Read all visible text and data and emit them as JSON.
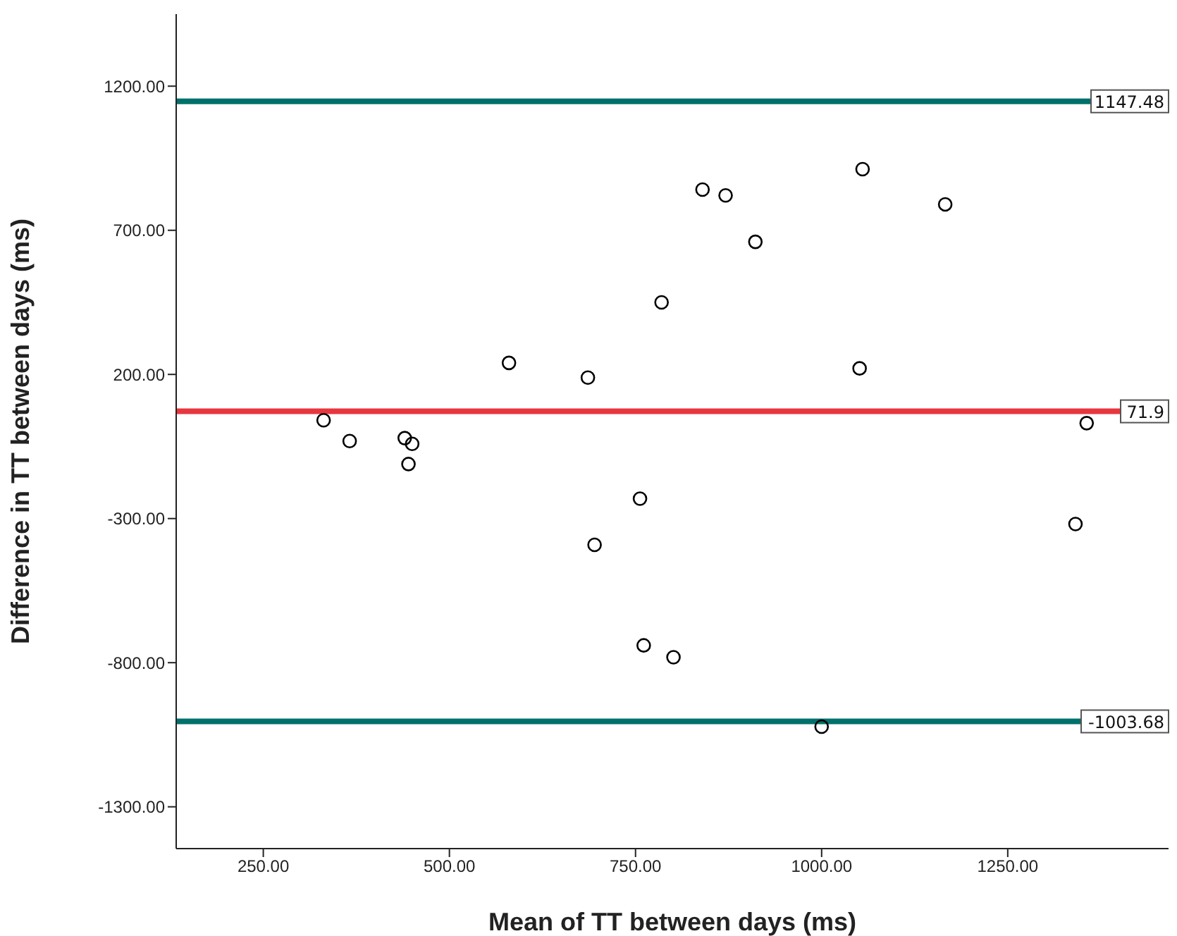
{
  "chart_data": {
    "type": "scatter",
    "xlabel": "Mean of TT between days (ms)",
    "ylabel": "Difference in TT between days (ms)",
    "x": [
      331,
      366,
      440,
      450,
      445,
      580,
      686,
      695,
      756,
      761,
      785,
      801,
      840,
      871,
      911,
      1000,
      1051,
      1055,
      1166,
      1341,
      1356
    ],
    "series": [
      {
        "color": "#000000",
        "values": [
          41,
          -31,
          -21,
          -41,
          -111,
          240,
          189,
          -391,
          -231,
          -740,
          450,
          -781,
          841,
          821,
          660,
          -1022,
          221,
          912,
          790,
          -319,
          31
        ]
      }
    ],
    "marker": "circle",
    "xlim": [
      133,
      1466
    ],
    "xticks": [
      {
        "value": 250,
        "label": "250.00"
      },
      {
        "value": 500,
        "label": "500.00"
      },
      {
        "value": 750,
        "label": "750.00"
      },
      {
        "value": 1000,
        "label": "1000.00"
      },
      {
        "value": 1250,
        "label": "1250.00"
      }
    ],
    "ylim": [
      -1445,
      1450
    ],
    "yticks": [
      {
        "value": -1300,
        "label": "-1300.00"
      },
      {
        "value": -800,
        "label": "-800.00"
      },
      {
        "value": -300,
        "label": "-300.00"
      },
      {
        "value": 200,
        "label": "200.00"
      },
      {
        "value": 700,
        "label": "700.00"
      },
      {
        "value": 1200,
        "label": "1200.00"
      }
    ],
    "ref_lines": [
      {
        "axis": "y",
        "value": 1147.48,
        "label": "1147.48",
        "color": "#00706b"
      },
      {
        "axis": "y",
        "value": 71.9,
        "label": "71.9",
        "color": "#e8363f"
      },
      {
        "axis": "y",
        "value": -1003.68,
        "label": "-1003.68",
        "color": "#00706b"
      }
    ]
  }
}
